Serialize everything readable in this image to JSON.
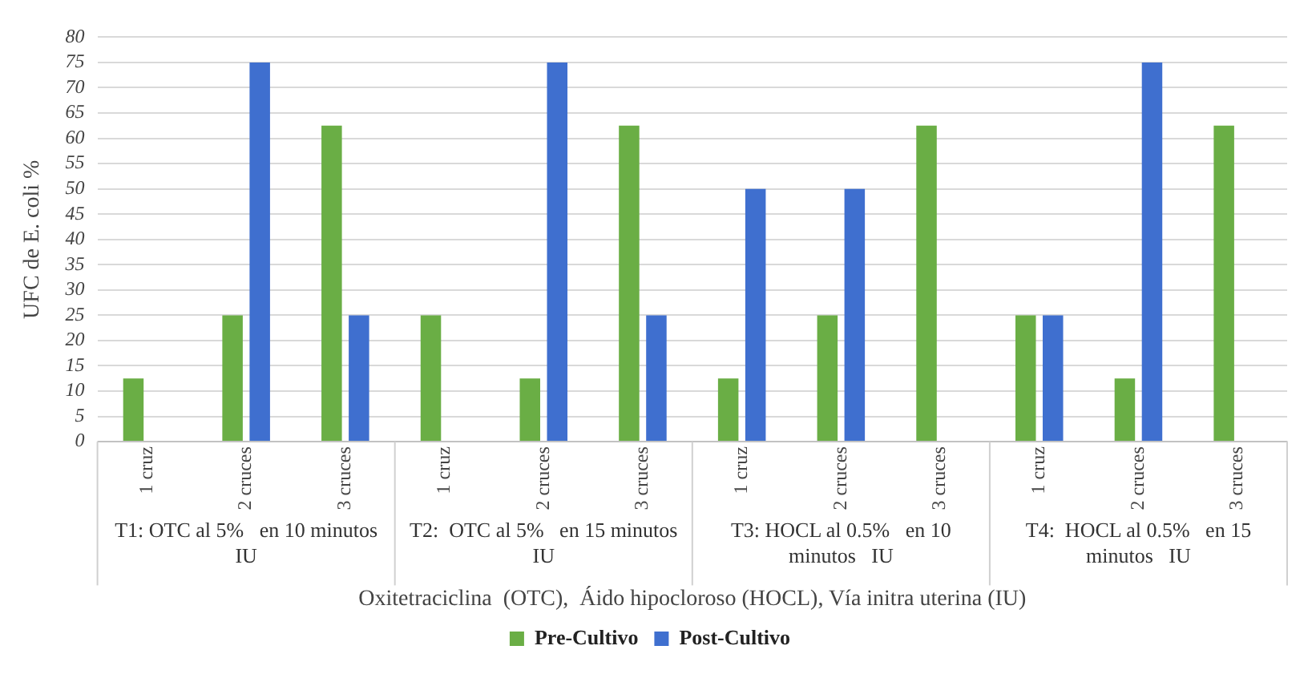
{
  "chart_data": {
    "type": "bar",
    "categories": [
      "1 cruz",
      "2 cruces",
      "3 cruces",
      "1 cruz",
      "2 cruces",
      "3 cruces",
      "1 cruz",
      "2 cruces",
      "3 cruces",
      "1 cruz",
      "2 cruces",
      "3 cruces"
    ],
    "series": [
      {
        "name": "Pre-Cultivo",
        "color": "#6aae45",
        "values": [
          12.5,
          25,
          62.5,
          25,
          12.5,
          62.5,
          12.5,
          25,
          62.5,
          25,
          12.5,
          62.5
        ]
      },
      {
        "name": "Post-Cultivo",
        "color": "#3f6fcf",
        "values": [
          0,
          75,
          25,
          0,
          75,
          25,
          50,
          50,
          0,
          25,
          75,
          0
        ]
      }
    ],
    "ylabel": "UFC de E. coli %",
    "xlabel": "Oxitetraciclina  (OTC),  Áido hipocloroso (HOCL), Vía initra uterina (IU)",
    "annotations": [
      "T1: OTC al 5%   en 10 minutos IU",
      "T2:  OTC al 5%   en 15 minutos IU",
      "T3: HOCL al 0.5%   en 10 minutos   IU",
      "T4:  HOCL al 0.5%   en 15 minutos   IU"
    ],
    "ylim": [
      0,
      80
    ],
    "yticks": [
      0,
      5,
      10,
      15,
      20,
      25,
      30,
      35,
      40,
      45,
      50,
      55,
      60,
      65,
      70,
      75,
      80
    ],
    "grid": "y",
    "legend": "bottom"
  }
}
